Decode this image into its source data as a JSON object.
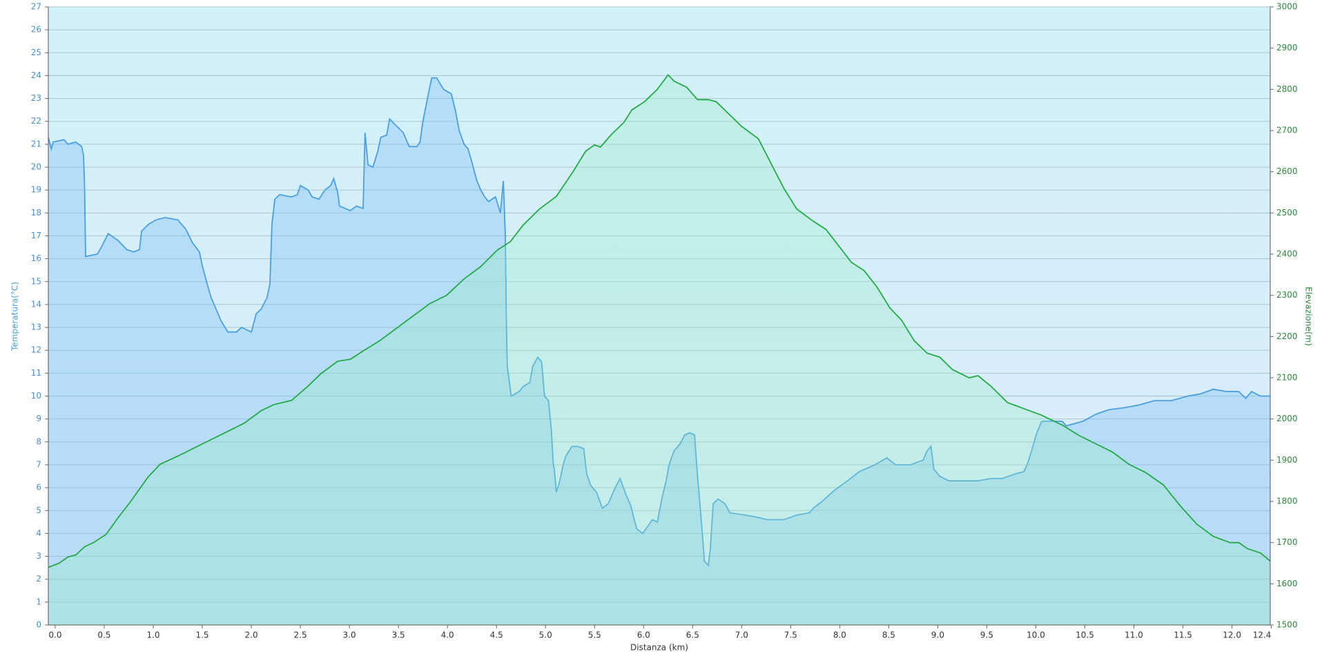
{
  "chart_data": {
    "type": "line",
    "x_label": "Distanza  (km)",
    "y_label": "Temperatura(°C)",
    "y2_label": "Elevazione(m)",
    "xlim": [
      -0.07,
      12.39
    ],
    "ylim": [
      0,
      27
    ],
    "y2lim": [
      1500,
      3000
    ],
    "grid": true,
    "xticks": [
      {
        "value": 0,
        "label": "0.0"
      },
      0.5,
      {
        "value": 1,
        "label": "1.0"
      },
      1.5,
      {
        "value": 2,
        "label": "2.0"
      },
      2.5,
      {
        "value": 3,
        "label": "3.0"
      },
      3.5,
      {
        "value": 4,
        "label": "4.0"
      },
      4.5,
      {
        "value": 5,
        "label": "5.0"
      },
      5.5,
      {
        "value": 6,
        "label": "6.0"
      },
      6.5,
      {
        "value": 7,
        "label": "7.0"
      },
      7.5,
      {
        "value": 8,
        "label": "8.0"
      },
      8.5,
      {
        "value": 9,
        "label": "9.0"
      },
      9.5,
      {
        "value": 10,
        "label": "10.0"
      },
      10.5,
      {
        "value": 11,
        "label": "11.0"
      },
      11.5,
      {
        "value": 12,
        "label": "12.0"
      },
      12.4
    ],
    "yticks": [
      0,
      1,
      2,
      3,
      4,
      5,
      6,
      7,
      8,
      9,
      10,
      11,
      12,
      13,
      14,
      15,
      16,
      17,
      18,
      19,
      20,
      21,
      22,
      23,
      24,
      25,
      26,
      27
    ],
    "y2ticks": [
      1500,
      1600,
      1700,
      1800,
      1900,
      2000,
      2100,
      2200,
      2300,
      2400,
      2500,
      2600,
      2700,
      2800,
      2900,
      3000
    ],
    "series": [
      {
        "name": "Temperatura",
        "color": "#4a9fe0",
        "fill": "rgba(120,190,245,0.35)",
        "x": [
          -0.07,
          -0.04,
          -0.02,
          0.09,
          0.13,
          0.21,
          0.27,
          0.29,
          0.3,
          0.31,
          0.43,
          0.47,
          0.54,
          0.64,
          0.73,
          0.8,
          0.86,
          0.88,
          0.95,
          1.03,
          1.12,
          1.25,
          1.33,
          1.4,
          1.47,
          1.5,
          1.55,
          1.59,
          1.66,
          1.69,
          1.76,
          1.85,
          1.9,
          2.0,
          2.05,
          2.1,
          2.16,
          2.19,
          2.21,
          2.24,
          2.29,
          2.41,
          2.47,
          2.5,
          2.58,
          2.62,
          2.69,
          2.75,
          2.81,
          2.84,
          2.88,
          2.9,
          3.01,
          3.07,
          3.14,
          3.16,
          3.19,
          3.24,
          3.29,
          3.32,
          3.38,
          3.41,
          3.48,
          3.55,
          3.61,
          3.69,
          3.72,
          3.75,
          3.81,
          3.84,
          3.89,
          3.96,
          4.04,
          4.08,
          4.12,
          4.17,
          4.21,
          4.25,
          4.3,
          4.34,
          4.38,
          4.42,
          4.49,
          4.54,
          4.57,
          4.59,
          4.6,
          4.61,
          4.65,
          4.73,
          4.77,
          4.84,
          4.87,
          4.92,
          4.96,
          4.99,
          5.03,
          5.06,
          5.08,
          5.09,
          5.11,
          5.14,
          5.18,
          5.21,
          5.27,
          5.33,
          5.39,
          5.42,
          5.46,
          5.52,
          5.58,
          5.64,
          5.7,
          5.76,
          5.82,
          5.87,
          5.93,
          5.99,
          6.04,
          6.09,
          6.14,
          6.19,
          6.23,
          6.26,
          6.31,
          6.37,
          6.42,
          6.47,
          6.52,
          6.55,
          6.59,
          6.62,
          6.66,
          6.68,
          6.71,
          6.76,
          6.83,
          6.88,
          7.04,
          7.17,
          7.26,
          7.43,
          7.56,
          7.69,
          7.73,
          7.82,
          7.95,
          8.08,
          8.2,
          8.36,
          8.48,
          8.57,
          8.72,
          8.85,
          8.89,
          8.93,
          8.96,
          9.02,
          9.11,
          9.24,
          9.41,
          9.54,
          9.66,
          9.79,
          9.88,
          9.92,
          9.97,
          10.01,
          10.06,
          10.27,
          10.31,
          10.48,
          10.61,
          10.74,
          10.91,
          11.04,
          11.21,
          11.38,
          11.55,
          11.68,
          11.81,
          11.94,
          12.07,
          12.14,
          12.2,
          12.29,
          12.39
        ],
        "values": [
          21.3,
          20.8,
          21.1,
          21.2,
          21.0,
          21.1,
          20.9,
          20.5,
          19,
          16.1,
          16.2,
          16.5,
          17.1,
          16.8,
          16.4,
          16.3,
          16.4,
          17.2,
          17.5,
          17.7,
          17.8,
          17.7,
          17.3,
          16.7,
          16.3,
          15.7,
          14.9,
          14.3,
          13.6,
          13.3,
          12.8,
          12.8,
          13.0,
          12.8,
          13.6,
          13.8,
          14.3,
          14.9,
          17.5,
          18.6,
          18.8,
          18.7,
          18.8,
          19.2,
          19.0,
          18.7,
          18.6,
          19.0,
          19.2,
          19.5,
          18.9,
          18.3,
          18.1,
          18.3,
          18.2,
          21.5,
          20.1,
          20.0,
          20.7,
          21.3,
          21.4,
          22.1,
          21.8,
          21.5,
          20.9,
          20.9,
          21.1,
          22.0,
          23.3,
          23.9,
          23.9,
          23.4,
          23.2,
          22.5,
          21.6,
          21.0,
          20.8,
          20.2,
          19.4,
          19.0,
          18.7,
          18.5,
          18.7,
          18.0,
          19.4,
          17.0,
          13.5,
          11.3,
          10.0,
          10.2,
          10.4,
          10.6,
          11.3,
          11.7,
          11.5,
          10.0,
          9.8,
          8.5,
          7.0,
          6.8,
          5.8,
          6.2,
          7.0,
          7.4,
          7.8,
          7.8,
          7.7,
          6.6,
          6.1,
          5.8,
          5.1,
          5.3,
          5.9,
          6.4,
          5.7,
          5.2,
          4.2,
          4.0,
          4.3,
          4.6,
          4.5,
          5.6,
          6.3,
          7.0,
          7.6,
          7.9,
          8.3,
          8.4,
          8.3,
          6.5,
          4.5,
          2.8,
          2.6,
          3.3,
          5.3,
          5.5,
          5.3,
          4.9,
          4.8,
          4.7,
          4.6,
          4.6,
          4.8,
          4.9,
          5.1,
          5.4,
          5.9,
          6.3,
          6.7,
          7.0,
          7.3,
          7.0,
          7.0,
          7.2,
          7.6,
          7.8,
          6.8,
          6.5,
          6.3,
          6.3,
          6.3,
          6.4,
          6.4,
          6.6,
          6.7,
          7.1,
          7.8,
          8.4,
          8.9,
          8.9,
          8.7,
          8.9,
          9.2,
          9.4,
          9.5,
          9.6,
          9.8,
          9.8,
          10.0,
          10.1,
          10.3,
          10.2,
          10.2,
          9.9,
          10.2,
          10.0,
          10.0
        ]
      },
      {
        "name": "Elevazione",
        "color": "#22aa44",
        "fill": "rgba(150,240,190,0.3)",
        "axis": "y2",
        "x": [
          -0.07,
          0.04,
          0.13,
          0.21,
          0.3,
          0.39,
          0.52,
          0.64,
          0.77,
          0.95,
          1.07,
          1.25,
          1.42,
          1.59,
          1.76,
          1.93,
          2.1,
          2.23,
          2.41,
          2.58,
          2.71,
          2.88,
          3.01,
          3.14,
          3.31,
          3.48,
          3.65,
          3.82,
          3.99,
          4.17,
          4.34,
          4.51,
          4.64,
          4.77,
          4.94,
          5.11,
          5.28,
          5.41,
          5.5,
          5.56,
          5.67,
          5.8,
          5.88,
          6.01,
          6.14,
          6.25,
          6.31,
          6.44,
          6.55,
          6.66,
          6.74,
          6.87,
          7.0,
          7.17,
          7.3,
          7.43,
          7.56,
          7.73,
          7.86,
          7.99,
          8.12,
          8.25,
          8.38,
          8.51,
          8.63,
          8.76,
          8.89,
          9.02,
          9.15,
          9.32,
          9.41,
          9.54,
          9.71,
          9.88,
          10.05,
          10.27,
          10.44,
          10.61,
          10.78,
          10.95,
          11.12,
          11.3,
          11.47,
          11.64,
          11.81,
          11.98,
          12.07,
          12.16,
          12.29,
          12.39
        ],
        "values": [
          1640,
          1650,
          1665,
          1670,
          1690,
          1700,
          1720,
          1760,
          1800,
          1860,
          1890,
          1910,
          1930,
          1950,
          1970,
          1990,
          2020,
          2035,
          2045,
          2080,
          2110,
          2140,
          2145,
          2165,
          2190,
          2220,
          2250,
          2280,
          2300,
          2340,
          2370,
          2410,
          2430,
          2470,
          2510,
          2540,
          2600,
          2650,
          2665,
          2660,
          2690,
          2720,
          2750,
          2770,
          2800,
          2835,
          2820,
          2805,
          2775,
          2775,
          2770,
          2740,
          2710,
          2680,
          2620,
          2560,
          2510,
          2480,
          2460,
          2420,
          2380,
          2360,
          2320,
          2270,
          2240,
          2190,
          2160,
          2150,
          2120,
          2100,
          2105,
          2080,
          2040,
          2025,
          2010,
          1985,
          1960,
          1940,
          1920,
          1890,
          1870,
          1840,
          1790,
          1745,
          1715,
          1700,
          1700,
          1685,
          1675,
          1655
        ]
      }
    ]
  }
}
